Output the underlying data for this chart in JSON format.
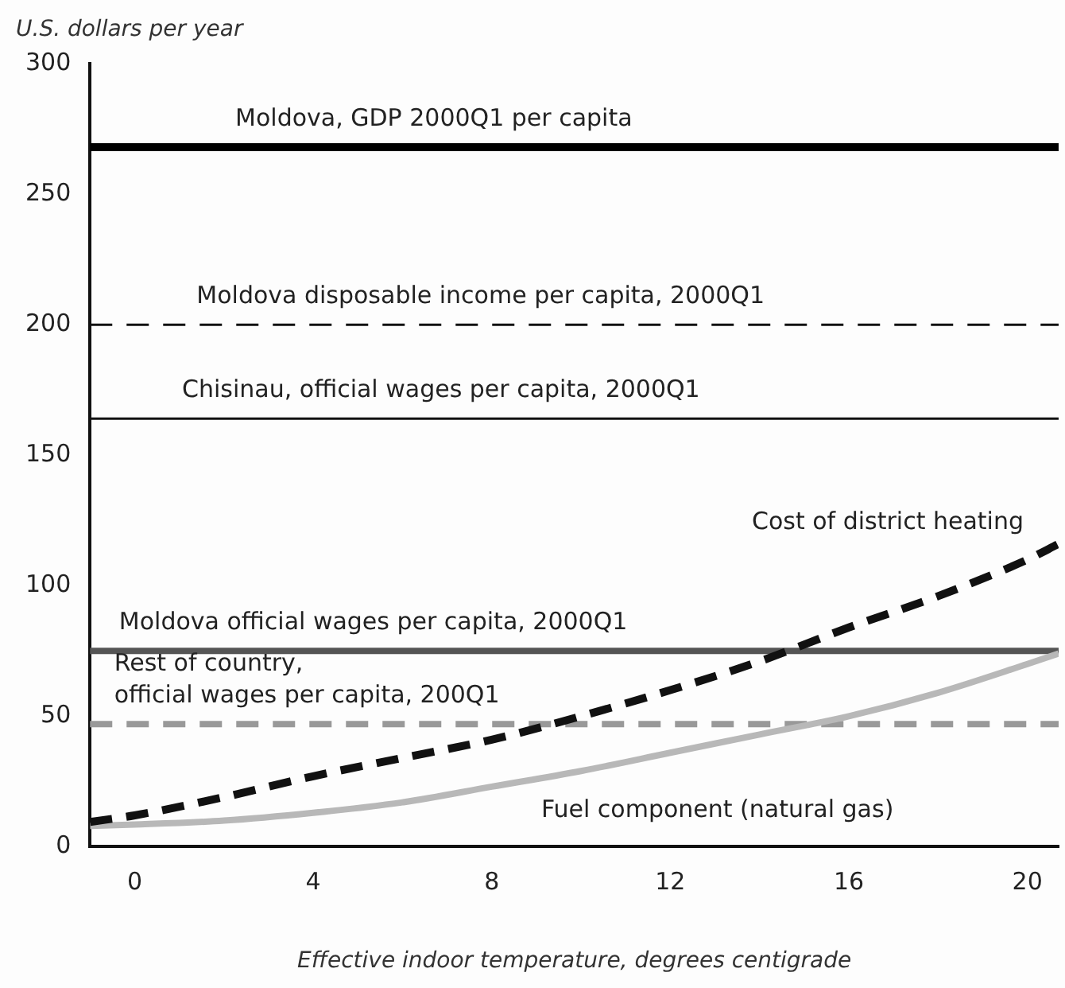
{
  "chart_data": {
    "type": "line",
    "ylabel": "U.S. dollars per year",
    "xlabel": "Effective indoor temperature, degrees centigrade",
    "x": [
      -1,
      0,
      2,
      4,
      6,
      8,
      10,
      12,
      14,
      16,
      18,
      20,
      20.7
    ],
    "series": [
      {
        "name": "Cost of district heating",
        "color": "#111111",
        "line_style": "dashed",
        "values": [
          9.5,
          12,
          19,
          27,
          34,
          41,
          50,
          60,
          71,
          84,
          96,
          110,
          116
        ]
      },
      {
        "name": "Fuel component (natural gas)",
        "color": "#b8b8b8",
        "line_style": "solid",
        "values": [
          8,
          8.5,
          10,
          13,
          17,
          23,
          29,
          36,
          43,
          50,
          59,
          70,
          74
        ]
      }
    ],
    "xlim": [
      -1,
      20.7
    ],
    "xticks": [
      0,
      4,
      8,
      12,
      16,
      20
    ],
    "ylim": [
      0,
      300
    ],
    "yticks": [
      0,
      50,
      100,
      150,
      200,
      250,
      300
    ],
    "ref_lines": [
      {
        "axis": "y",
        "value": 268,
        "label": "Moldova, GDP 2000Q1 per capita",
        "color": "#000000",
        "line_style": "solid"
      },
      {
        "axis": "y",
        "value": 200,
        "label": "Moldova disposable income per capita, 2000Q1",
        "color": "#111111",
        "line_style": "dashed"
      },
      {
        "axis": "y",
        "value": 164,
        "label": "Chisinau, official wages per capita, 2000Q1",
        "color": "#111111",
        "line_style": "solid"
      },
      {
        "axis": "y",
        "value": 75,
        "label": "Moldova official wages per capita, 2000Q1",
        "color": "#555555",
        "line_style": "solid"
      },
      {
        "axis": "y",
        "value": 47,
        "label": "Rest of country,\nofficial wages per capita, 200Q1",
        "color": "#999999",
        "line_style": "dashed"
      }
    ],
    "grid": false,
    "legend": false,
    "marker": "none"
  }
}
